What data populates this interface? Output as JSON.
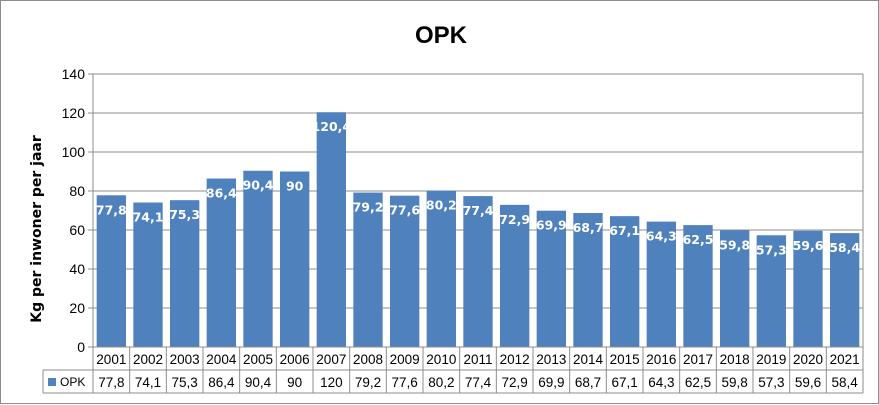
{
  "chart_data": {
    "type": "bar",
    "title": "OPK",
    "ylabel": "Kg per inwoner per jaar",
    "xlabel": "",
    "ylim": [
      0,
      140
    ],
    "yticks": [
      "0",
      "20",
      "40",
      "60",
      "80",
      "100",
      "120",
      "140"
    ],
    "grid": true,
    "legend": "data-table-left",
    "bar_color": "#4f81bd",
    "categories": [
      "2001",
      "2002",
      "2003",
      "2004",
      "2005",
      "2006",
      "2007",
      "2008",
      "2009",
      "2010",
      "2011",
      "2012",
      "2013",
      "2014",
      "2015",
      "2016",
      "2017",
      "2018",
      "2019",
      "2020",
      "2021"
    ],
    "series": [
      {
        "name": "OPK",
        "values": [
          77.8,
          74.1,
          75.3,
          86.4,
          90.4,
          90,
          120.4,
          79.2,
          77.6,
          80.2,
          77.4,
          72.9,
          69.9,
          68.7,
          67.1,
          64.3,
          62.5,
          59.8,
          57.3,
          59.6,
          58.4
        ],
        "data_labels": [
          "77,8",
          "74,1",
          "75,3",
          "86,4",
          "90,4",
          "90",
          "120,4",
          "79,2",
          "77,6",
          "80,2",
          "77,4",
          "72,9",
          "69,9",
          "68,7",
          "67,1",
          "64,3",
          "62,5",
          "59,8",
          "57,3",
          "59,6",
          "58,4"
        ],
        "table_values": [
          "77,8",
          "74,1",
          "75,3",
          "86,4",
          "90,4",
          "90",
          "120",
          "79,2",
          "77,6",
          "80,2",
          "77,4",
          "72,9",
          "69,9",
          "68,7",
          "67,1",
          "64,3",
          "62,5",
          "59,8",
          "57,3",
          "59,6",
          "58,4"
        ]
      }
    ]
  }
}
